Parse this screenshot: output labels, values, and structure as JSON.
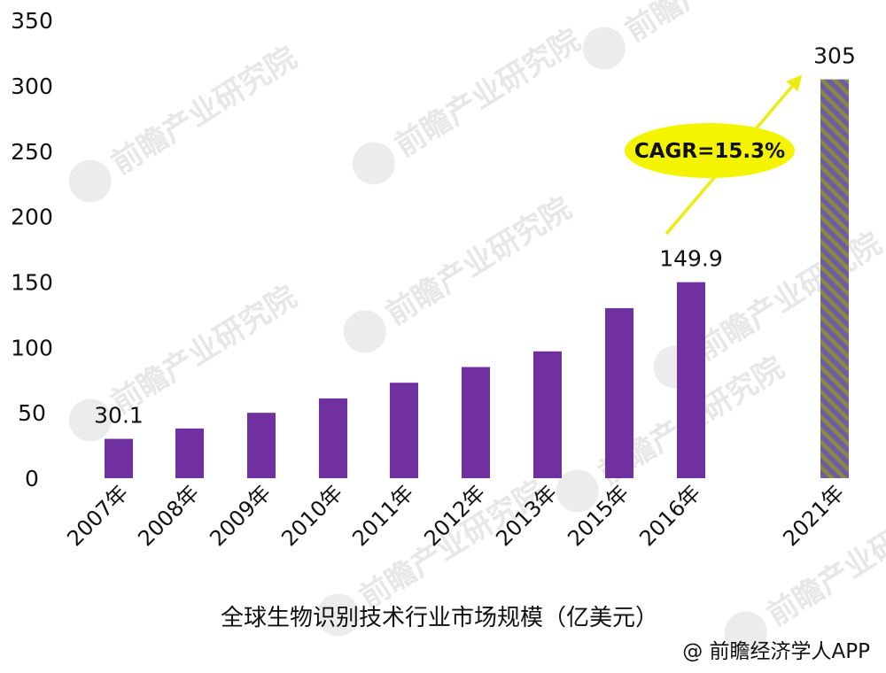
{
  "chart_data": {
    "type": "bar",
    "title": "全球生物识别技术行业市场规模（亿美元）",
    "categories": [
      "2007年",
      "2008年",
      "2009年",
      "2010年",
      "2011年",
      "2012年",
      "2013年",
      "2015年",
      "2016年",
      "2021年"
    ],
    "values": [
      30.1,
      38,
      50,
      61,
      73,
      85,
      97,
      130,
      149.9,
      305
    ],
    "data_labels": [
      {
        "category": "2007年",
        "text": "30.1"
      },
      {
        "category": "2016年",
        "text": "149.9"
      },
      {
        "category": "2021年",
        "text": "305"
      }
    ],
    "forecast_categories": [
      "2021年"
    ],
    "ylim": [
      0,
      350
    ],
    "yticks": [
      0,
      50,
      100,
      150,
      200,
      250,
      300,
      350
    ],
    "grid": false,
    "legend": "none",
    "annotation": "CAGR=15.3%",
    "source": "@ 前瞻经济学人APP",
    "watermark": "前瞻产业研究院",
    "colors": {
      "bar": "#7030a0",
      "forecast_stripe_a": "#6e5ca6",
      "forecast_stripe_b": "#8a8a3e",
      "annotation_fill": "#f4f400",
      "arrow": "#ecec10"
    }
  }
}
